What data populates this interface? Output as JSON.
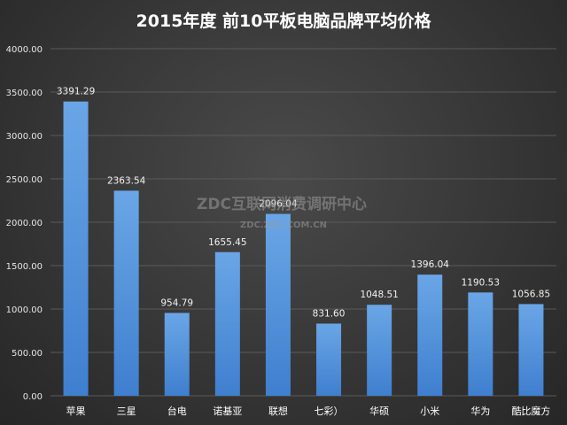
{
  "chart_data": {
    "type": "bar",
    "title": "2015年度 前10平板电脑品牌平均价格",
    "categories": [
      "苹果",
      "三星",
      "台电",
      "诺基亚",
      "联想",
      "七彩）",
      "华硕",
      "小米",
      "华为",
      "酷比魔方"
    ],
    "values": [
      3391.29,
      2363.54,
      954.79,
      1655.45,
      2096.04,
      831.6,
      1048.51,
      1396.04,
      1190.53,
      1056.85
    ],
    "value_labels": [
      "3391.29",
      "2363.54",
      "954.79",
      "1655.45",
      "2096.04",
      "831.60",
      "1048.51",
      "1396.04",
      "1190.53",
      "1056.85"
    ],
    "ylim": [
      0,
      4000
    ],
    "yticks": [
      0,
      500,
      1000,
      1500,
      2000,
      2500,
      3000,
      3500,
      4000
    ],
    "ytick_labels": [
      "0.00",
      "500.00",
      "1000.00",
      "1500.00",
      "2000.00",
      "2500.00",
      "3000.00",
      "3500.00",
      "4000.00"
    ],
    "xlabel": "",
    "ylabel": "",
    "grid": true,
    "colors": {
      "bar_top": "#6aa6e6",
      "bar_bottom": "#3f7fcf",
      "grid": "#5a5a5a"
    }
  },
  "watermark": {
    "main": "ZDC互联网消费调研中心",
    "sub": "ZDC.ZOL.COM.CN"
  }
}
